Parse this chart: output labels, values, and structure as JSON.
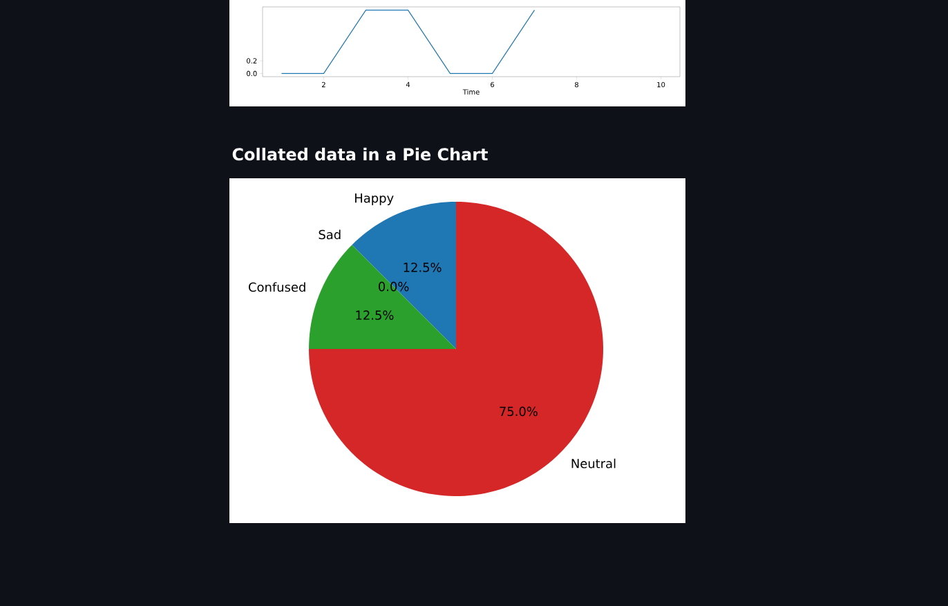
{
  "chart_data": [
    {
      "type": "line",
      "xlabel": "Time",
      "x": [
        1,
        2,
        3,
        4,
        5,
        6,
        7
      ],
      "values": [
        0,
        0,
        1,
        1,
        0,
        0,
        1
      ],
      "color": "#1f77b4",
      "xlim": [
        0.55,
        10.45
      ],
      "ylim": [
        -0.05,
        1.05
      ],
      "xticks": [
        2,
        4,
        6,
        8,
        10
      ],
      "yticks": [
        {
          "value": 0,
          "label": "0.0"
        },
        {
          "value": 0.2,
          "label": "0.2"
        }
      ]
    },
    {
      "type": "pie",
      "title": "Collated data in a Pie Chart",
      "categories": [
        "Happy",
        "Sad",
        "Confused",
        "Neutral"
      ],
      "values": [
        12.5,
        0,
        12.5,
        75
      ],
      "colors": [
        "#1f77b4",
        "#ff7f0e",
        "#2ca02c",
        "#d62728"
      ],
      "value_labels": [
        "12.5%",
        "0.0%",
        "12.5%",
        "75.0%"
      ]
    }
  ]
}
